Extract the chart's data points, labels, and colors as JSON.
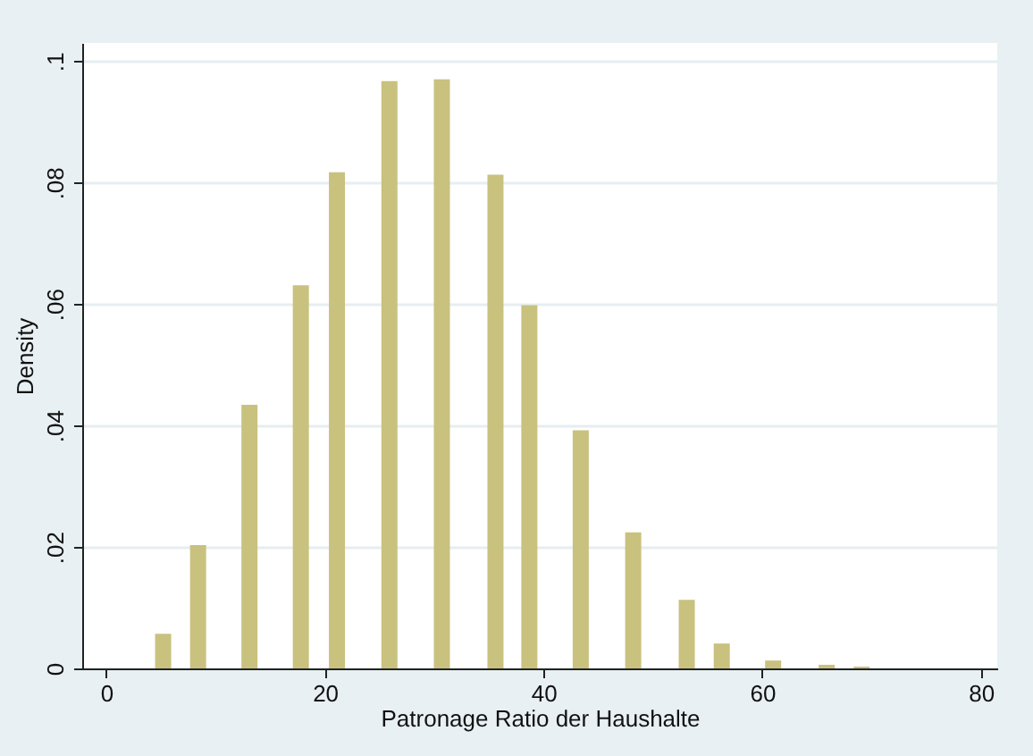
{
  "chart_data": {
    "type": "bar",
    "xlabel": "Patronage Ratio der Haushalte",
    "ylabel": "Density",
    "x": [
      5.2,
      8.4,
      13.1,
      17.8,
      21.1,
      25.9,
      30.7,
      35.6,
      38.7,
      43.4,
      48.2,
      53.1,
      56.3,
      61.0,
      65.9,
      69.1
    ],
    "values": [
      0.0057,
      0.0203,
      0.0434,
      0.0631,
      0.0817,
      0.0967,
      0.097,
      0.0813,
      0.0598,
      0.0392,
      0.0224,
      0.0113,
      0.0041,
      0.0013,
      0.0006,
      0.0003
    ],
    "color": "#c9c17e",
    "xlim": [
      -2.2,
      81.5
    ],
    "xticks": [
      0,
      20,
      40,
      60,
      80
    ],
    "ylim": [
      0,
      0.103
    ],
    "yticks": [
      {
        "value": 0,
        "label": "0"
      },
      {
        "value": 0.02,
        "label": ".02"
      },
      {
        "value": 0.04,
        "label": ".04"
      },
      {
        "value": 0.06,
        "label": ".06"
      },
      {
        "value": 0.08,
        "label": ".08"
      },
      {
        "value": 0.1,
        "label": ".1"
      }
    ],
    "grid": "y"
  }
}
